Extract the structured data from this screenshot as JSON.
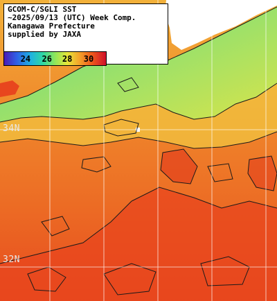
{
  "map": {
    "title_lines": [
      "GCOM-C/SGLI SST",
      "~2025/09/13 (UTC) Week Comp.",
      "Kanagawa Prefecture",
      "supplied by JAXA"
    ],
    "colorbar": {
      "ticks": [
        "24",
        "26",
        "28",
        "30"
      ],
      "range_c": [
        23,
        31
      ]
    },
    "latitude_labels": [
      "34N",
      "32N"
    ],
    "colors": {
      "land": "#ffffff",
      "coast_water": "#9ce06a",
      "warm_water": "#f08a2c",
      "hot_water": "#e8461e",
      "contour": "#1a1a1a",
      "grid": "#ffffff"
    }
  }
}
